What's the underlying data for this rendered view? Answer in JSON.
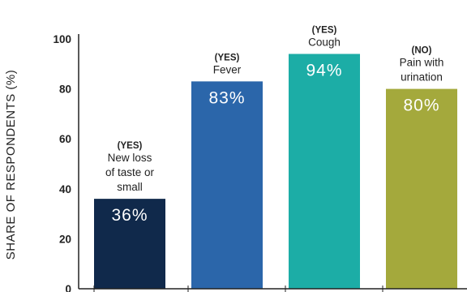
{
  "chart_data": {
    "type": "bar",
    "ylabel": "SHARE OF RESPONDENTS (%)",
    "ylim": [
      0,
      100
    ],
    "yticks": [
      "0",
      "20",
      "40",
      "60",
      "80",
      "100"
    ],
    "bars": [
      {
        "answer": "(YES)",
        "label_lines": [
          "New loss",
          "of taste or",
          "small"
        ],
        "value": 36,
        "value_label": "36%",
        "color": "#10294b"
      },
      {
        "answer": "(YES)",
        "label_lines": [
          "Fever"
        ],
        "value": 83,
        "value_label": "83%",
        "color": "#2b66aa"
      },
      {
        "answer": "(YES)",
        "label_lines": [
          "Cough"
        ],
        "value": 94,
        "value_label": "94%",
        "color": "#1cada6"
      },
      {
        "answer": "(NO)",
        "label_lines": [
          "Pain with",
          "urination"
        ],
        "value": 80,
        "value_label": "80%",
        "color": "#a4a93c"
      }
    ],
    "grid": false,
    "legend": "none"
  }
}
